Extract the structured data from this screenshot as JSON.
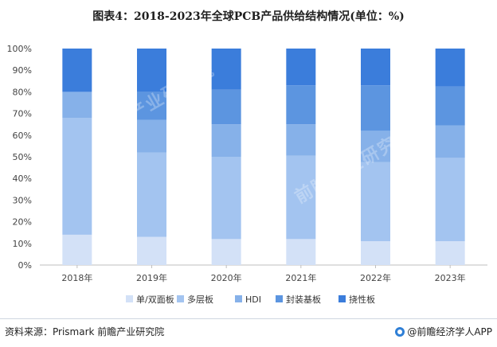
{
  "title": "图表4：2018-2023年全球PCB产品供给结构情况(单位：%)",
  "source": "资料来源：Prismark 前瞻产业研究院",
  "brand": "@前瞻经济学人APP",
  "watermark": "前瞻产业研究院",
  "chart_data": {
    "type": "bar",
    "stacked": true,
    "title": "图表4：2018-2023年全球PCB产品供给结构情况(单位：%)",
    "categories": [
      "2018年",
      "2019年",
      "2020年",
      "2021年",
      "2022年",
      "2023年"
    ],
    "ylim": [
      0,
      100
    ],
    "yticks": [
      "0%",
      "10%",
      "20%",
      "30%",
      "40%",
      "50%",
      "60%",
      "70%",
      "80%",
      "90%",
      "100%"
    ],
    "ytick_values": [
      0,
      10,
      20,
      30,
      40,
      50,
      60,
      70,
      80,
      90,
      100
    ],
    "legend_position": "bottom",
    "series": [
      {
        "name": "单/双面板",
        "color": "#d3e1f7",
        "values": [
          14,
          13,
          12,
          12,
          11,
          11
        ]
      },
      {
        "name": "多层板",
        "color": "#a3c4f0",
        "values": [
          54,
          39,
          38,
          38.5,
          36.5,
          38.5
        ]
      },
      {
        "name": "HDI",
        "color": "#86b1e9",
        "values": [
          12,
          15,
          15,
          14.5,
          14.5,
          15
        ]
      },
      {
        "name": "封装基板",
        "color": "#5c95e0",
        "values": [
          0,
          13,
          16,
          18,
          21,
          18
        ]
      },
      {
        "name": "挠性板",
        "color": "#3b7ddb",
        "values": [
          20,
          20,
          19,
          17,
          17,
          17.5
        ]
      }
    ]
  }
}
